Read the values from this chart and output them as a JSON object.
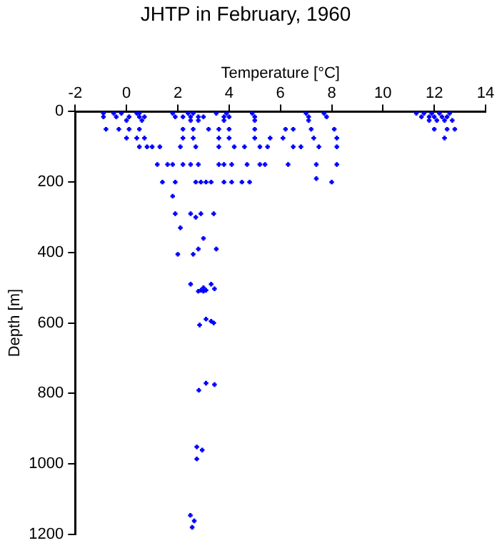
{
  "chart_data": {
    "type": "scatter",
    "title": "JHTP in February, 1960",
    "xlabel": "Temperature [°C]",
    "ylabel": "Depth [m]",
    "xlim": [
      -2,
      14
    ],
    "xticks": [
      -2,
      0,
      2,
      4,
      6,
      8,
      10,
      12,
      14
    ],
    "ylim": [
      1200,
      0
    ],
    "yticks": [
      0,
      200,
      400,
      600,
      800,
      1000,
      1200
    ],
    "grid": false,
    "marker": "cross",
    "series": [
      {
        "color": "#0000ff",
        "x": [
          -0.9,
          -0.5,
          -0.2,
          0.4,
          0.5,
          1.8,
          2.4,
          2.6,
          3.5,
          3.9,
          4.9,
          7.0,
          7.7,
          11.3,
          11.6,
          11.9,
          12.2,
          12.6,
          -0.9,
          -0.4,
          0.1,
          0.5,
          0.7,
          1.9,
          2.2,
          2.5,
          2.8,
          3.0,
          3.8,
          4.0,
          5.0,
          7.1,
          7.8,
          11.5,
          11.8,
          12.0,
          12.3,
          12.5,
          0.0,
          0.6,
          2.5,
          2.8,
          3.8,
          5.0,
          7.1,
          11.8,
          12.1,
          12.4,
          12.7,
          -0.8,
          -0.3,
          0.1,
          0.5,
          2.2,
          2.6,
          3.2,
          3.6,
          4.0,
          5.0,
          6.2,
          6.5,
          7.2,
          8.1,
          12.0,
          12.5,
          12.8,
          0.0,
          0.4,
          0.7,
          2.2,
          2.6,
          3.6,
          4.0,
          5.0,
          5.6,
          6.1,
          7.3,
          8.2,
          12.4,
          0.5,
          0.8,
          1.0,
          1.3,
          2.1,
          2.7,
          3.6,
          4.2,
          4.6,
          5.2,
          5.5,
          6.5,
          6.8,
          7.5,
          8.2,
          1.2,
          1.6,
          1.8,
          2.2,
          2.5,
          2.8,
          3.6,
          3.8,
          4.1,
          4.7,
          5.2,
          5.4,
          6.3,
          7.4,
          8.2,
          7.4,
          1.4,
          1.9,
          2.7,
          2.9,
          3.1,
          3.3,
          3.8,
          4.1,
          4.5,
          4.8,
          8.0,
          1.8,
          1.9,
          2.5,
          2.9,
          3.4,
          2.7,
          2.1,
          3.0,
          2.8,
          3.5,
          2.0,
          2.6,
          2.5,
          3.3,
          2.8,
          3.0,
          3.0,
          3.43,
          2.9,
          3.1,
          3.1,
          3.3,
          3.4,
          2.85,
          3.1,
          3.43,
          2.82,
          2.74,
          2.95,
          2.74,
          2.49,
          2.64,
          2.56
        ],
        "values": [
          5,
          5,
          5,
          5,
          5,
          5,
          5,
          5,
          5,
          5,
          5,
          5,
          5,
          5,
          5,
          5,
          5,
          5,
          15,
          15,
          15,
          15,
          15,
          15,
          15,
          15,
          15,
          15,
          15,
          15,
          15,
          15,
          15,
          15,
          15,
          15,
          15,
          15,
          25,
          25,
          25,
          25,
          25,
          25,
          25,
          25,
          25,
          25,
          25,
          50,
          50,
          50,
          50,
          50,
          50,
          50,
          50,
          50,
          50,
          50,
          50,
          50,
          50,
          50,
          50,
          50,
          75,
          75,
          75,
          75,
          75,
          75,
          75,
          75,
          75,
          75,
          75,
          75,
          75,
          100,
          100,
          100,
          100,
          100,
          100,
          100,
          100,
          100,
          100,
          100,
          100,
          100,
          100,
          100,
          150,
          150,
          150,
          150,
          150,
          150,
          150,
          150,
          150,
          150,
          150,
          150,
          150,
          150,
          150,
          190,
          200,
          200,
          200,
          200,
          200,
          200,
          200,
          200,
          200,
          200,
          200,
          240,
          290,
          290,
          290,
          290,
          300,
          330,
          360,
          390,
          390,
          405,
          405,
          490,
          490,
          510,
          510,
          500,
          503,
          507,
          507,
          589,
          595,
          600,
          606,
          771,
          775,
          791,
          952,
          961,
          986,
          1146,
          1162,
          1180
        ]
      }
    ]
  }
}
